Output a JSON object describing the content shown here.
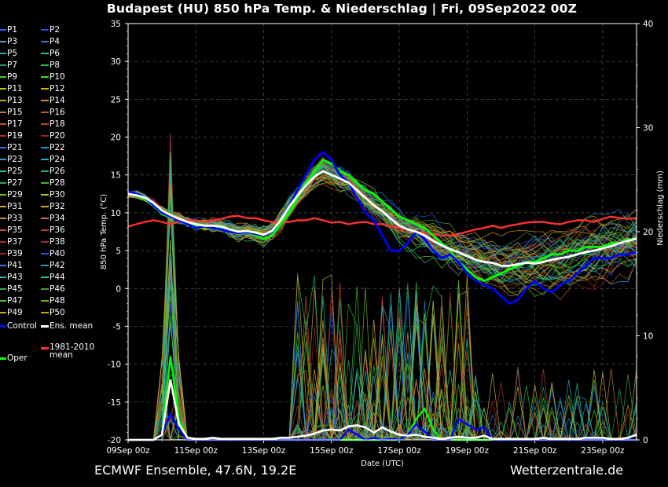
{
  "title": "Budapest  (HU)  850 hPa Temp. & Niederschlag | Fri, 09Sep2022 00Z",
  "footer": {
    "left": "ECMWF Ensemble, 47.6N, 19.2E",
    "right": "Wetterzentrale.de"
  },
  "legend": {
    "members": [
      "P1",
      "P2",
      "P3",
      "P4",
      "P5",
      "P6",
      "P7",
      "P8",
      "P9",
      "P10",
      "P11",
      "P12",
      "P13",
      "P14",
      "P15",
      "P16",
      "P17",
      "P18",
      "P19",
      "P20",
      "P21",
      "P22",
      "P23",
      "P24",
      "P25",
      "P26",
      "P27",
      "P28",
      "P29",
      "P30",
      "P31",
      "P32",
      "P33",
      "P34",
      "P35",
      "P36",
      "P37",
      "P38",
      "P39",
      "P40",
      "P41",
      "P42",
      "P43",
      "P44",
      "P45",
      "P46",
      "P47",
      "P48",
      "P49",
      "P50"
    ],
    "member_colors": [
      "#1f5fff",
      "#1f4fd8",
      "#4aa0e0",
      "#2f7fd0",
      "#20b0b0",
      "#20c090",
      "#20a060",
      "#20c040",
      "#30d030",
      "#40e020",
      "#c0c020",
      "#d0b020",
      "#d0a020",
      "#d09020",
      "#c08030",
      "#c06020",
      "#d05020",
      "#c04020",
      "#b03020",
      "#a02020",
      "#2a70e0",
      "#1f90e0",
      "#30a0d0",
      "#20b0c0",
      "#20c0a0",
      "#20b070",
      "#30a050",
      "#40b030",
      "#60c030",
      "#b0c020",
      "#c0b030",
      "#d0a030",
      "#d09030",
      "#d07030",
      "#c05030",
      "#b04030",
      "#a03030",
      "#a02840",
      "#9a2020",
      "#2a50e0",
      "#2f7fd0",
      "#3090d0",
      "#30b0b0",
      "#30c080",
      "#30b050",
      "#40a030",
      "#50c030",
      "#70b020",
      "#c0b020",
      "#d0a010"
    ],
    "control": "Control",
    "ens_mean": "Ens. mean",
    "climate_mean": "1981-2010\nmean",
    "oper": "Oper",
    "colors": {
      "control": "#0000ff",
      "ens_mean": "#ffffff",
      "climate": "#ff3030",
      "oper": "#00ff00"
    }
  },
  "chart_data": {
    "type": "line",
    "title": "Budapest  (HU)  850 hPa Temp. & Niederschlag | Fri, 09Sep2022 00Z",
    "xlabel": "Date (UTC)",
    "ylabel": "850 hPa Temp. (°C)",
    "y2label": "Niederschlag (mm)",
    "x_ticks": [
      "09Sep 00z",
      "11Sep 00z",
      "13Sep 00z",
      "15Sep 00z",
      "17Sep 00z",
      "19Sep 00z",
      "21Sep 00z",
      "23Sep 00z"
    ],
    "xlim_days": [
      0,
      15
    ],
    "ylim": [
      -20,
      35
    ],
    "y_ticks": [
      35,
      30,
      25,
      20,
      15,
      10,
      5,
      0,
      -5,
      -10,
      -15,
      -20
    ],
    "y2lim": [
      0,
      40
    ],
    "y2_ticks": [
      40,
      30,
      20,
      10,
      0
    ],
    "grid": true,
    "temp_series": {
      "oper": [
        12.5,
        12.3,
        11.8,
        11.0,
        9.8,
        9.5,
        9.0,
        8.5,
        8.2,
        8.0,
        8.3,
        8.0,
        7.5,
        7.2,
        7.5,
        7.0,
        6.5,
        7.0,
        8.5,
        10.0,
        12.0,
        14.0,
        15.5,
        17.0,
        16.5,
        15.5,
        15.0,
        14.0,
        13.0,
        12.5,
        11.5,
        10.5,
        9.5,
        9.0,
        8.5,
        8.0,
        7.0,
        6.0,
        5.0,
        3.5,
        2.5,
        1.5,
        1.0,
        1.5,
        2.0,
        2.5,
        3.0,
        3.5,
        3.5,
        4.0,
        4.5,
        4.5,
        5.0,
        5.0,
        5.5,
        5.5,
        5.5,
        6.0,
        6.0,
        6.5,
        6.5
      ],
      "control": [
        12.8,
        12.5,
        12.0,
        11.0,
        10.0,
        9.5,
        9.0,
        8.5,
        8.0,
        8.2,
        8.0,
        7.8,
        7.5,
        7.3,
        7.5,
        7.2,
        7.0,
        7.5,
        9.0,
        11.0,
        13.0,
        15.0,
        17.0,
        18.0,
        17.0,
        15.0,
        14.0,
        12.0,
        10.0,
        9.0,
        7.0,
        5.0,
        5.0,
        6.0,
        7.5,
        6.5,
        5.0,
        4.0,
        4.5,
        3.5,
        2.0,
        1.0,
        0.5,
        0.0,
        -1.0,
        -2.0,
        -1.5,
        0.0,
        1.0,
        0.0,
        -0.5,
        0.5,
        1.0,
        2.0,
        3.0,
        4.0,
        4.0,
        4.0,
        4.5,
        4.5,
        4.8
      ],
      "ens_mean": [
        12.5,
        12.3,
        12.0,
        11.3,
        10.3,
        9.7,
        9.2,
        8.8,
        8.5,
        8.3,
        8.3,
        8.2,
        7.8,
        7.5,
        7.6,
        7.4,
        7.1,
        7.6,
        9.0,
        10.8,
        12.3,
        13.6,
        14.8,
        15.5,
        15.0,
        14.5,
        14.0,
        13.0,
        12.0,
        11.0,
        10.2,
        9.2,
        8.3,
        7.8,
        7.5,
        7.0,
        6.3,
        5.7,
        5.2,
        4.8,
        4.3,
        3.8,
        3.5,
        3.4,
        3.0,
        3.0,
        3.2,
        3.4,
        3.3,
        3.5,
        3.8,
        4.0,
        4.2,
        4.5,
        4.8,
        5.0,
        5.3,
        5.6,
        6.0,
        6.3,
        6.6
      ],
      "climate_mean": [
        8.2,
        8.5,
        8.8,
        9.0,
        8.8,
        8.5,
        8.8,
        9.0,
        9.0,
        8.8,
        9.0,
        9.2,
        9.5,
        9.6,
        9.3,
        9.3,
        9.0,
        8.8,
        8.7,
        8.8,
        9.0,
        9.0,
        9.3,
        9.0,
        8.7,
        8.8,
        8.5,
        8.7,
        8.8,
        8.5,
        8.5,
        8.2,
        8.0,
        7.8,
        7.5,
        7.3,
        7.2,
        7.0,
        7.0,
        7.2,
        7.5,
        7.8,
        8.0,
        8.3,
        8.0,
        8.3,
        8.5,
        8.7,
        8.8,
        8.8,
        8.6,
        8.5,
        8.8,
        9.0,
        9.0,
        8.8,
        9.2,
        9.5,
        9.3,
        9.2,
        9.3
      ]
    },
    "precip_series": {
      "oper": [
        0,
        0,
        0,
        0,
        0.5,
        8,
        2,
        0,
        0,
        0,
        0,
        0,
        0,
        0,
        0,
        0,
        0,
        0,
        0,
        0,
        0,
        0,
        0,
        0,
        0,
        0,
        0,
        0,
        0,
        0,
        0,
        0,
        0,
        0.5,
        2,
        3,
        1,
        0,
        0,
        0,
        0,
        0,
        0,
        0,
        0,
        0,
        0,
        0,
        0,
        0,
        0,
        0,
        0,
        0,
        0,
        0,
        0,
        0,
        0,
        0,
        0
      ],
      "control": [
        0,
        0,
        0,
        0,
        0.5,
        2.5,
        1,
        0,
        0,
        0,
        0,
        0,
        0,
        0,
        0,
        0,
        0,
        0,
        0,
        0,
        0,
        0,
        0,
        0,
        0,
        0,
        1,
        0.5,
        0,
        0.2,
        0,
        0.1,
        0,
        0.5,
        1.5,
        0.8,
        0,
        0,
        0,
        2,
        1.5,
        1,
        1.2,
        0,
        0,
        0,
        0,
        0,
        0,
        0,
        0,
        0,
        0,
        0,
        0,
        0,
        0,
        0,
        0,
        0,
        0
      ],
      "ens_mean": [
        0,
        0,
        0,
        0,
        0.5,
        5.8,
        1.5,
        0.2,
        0.1,
        0.1,
        0.2,
        0.1,
        0.1,
        0.1,
        0.1,
        0.1,
        0.1,
        0.1,
        0.2,
        0.2,
        0.3,
        0.4,
        0.6,
        0.9,
        1.0,
        0.9,
        1.3,
        1.4,
        1.2,
        0.7,
        1.2,
        0.8,
        0.5,
        0.4,
        0.5,
        0.3,
        0.2,
        0.1,
        0.2,
        0.3,
        0.2,
        0.2,
        0.4,
        0.1,
        0.1,
        0.1,
        0.1,
        0.1,
        0.1,
        0.2,
        0.1,
        0.1,
        0.1,
        0.1,
        0.2,
        0.2,
        0.2,
        0.1,
        0.1,
        0.2,
        0.5
      ]
    }
  }
}
